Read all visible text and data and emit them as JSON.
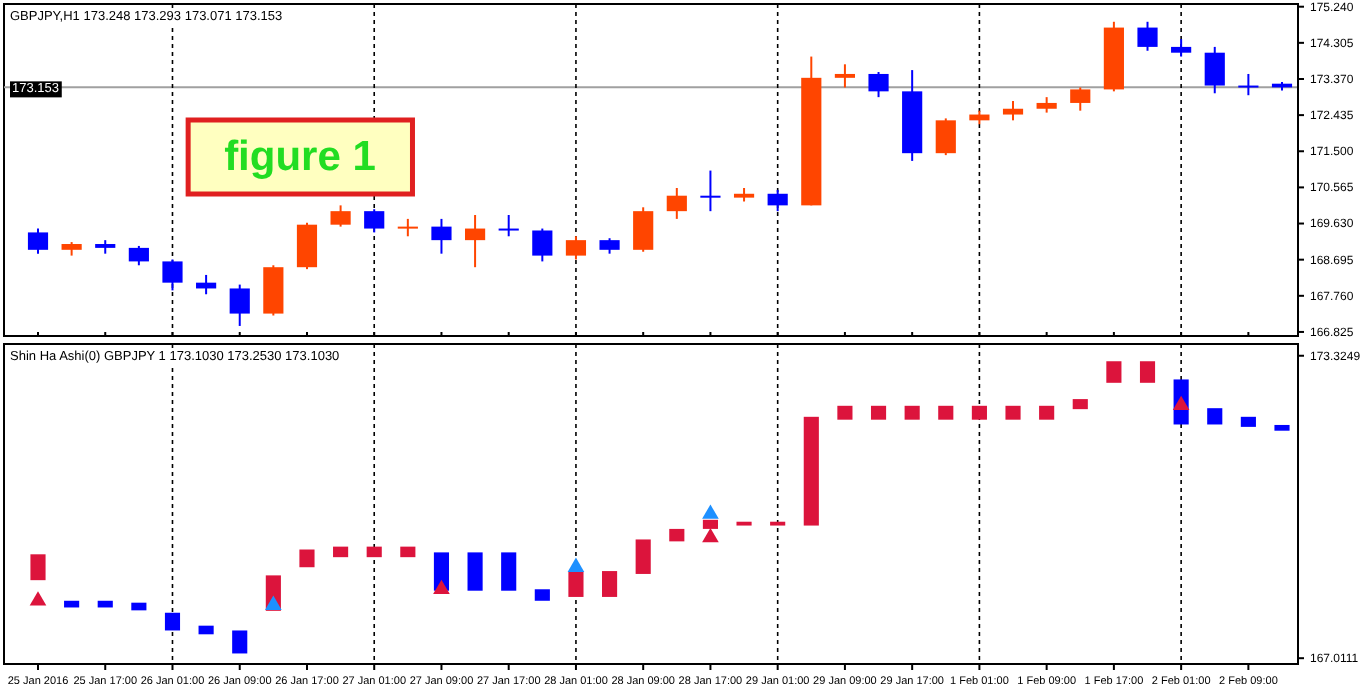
{
  "chart_data": [
    {
      "type": "candlestick",
      "title": "GBPJPY,H1 173.248 173.293 173.071 173.153",
      "categories": [
        "25 Jan 2016",
        null,
        "25 Jan 17:00",
        null,
        "26 Jan 01:00",
        null,
        "26 Jan 09:00",
        null,
        "26 Jan 17:00",
        null,
        "27 Jan 01:00",
        null,
        "27 Jan 09:00",
        null,
        "27 Jan 17:00",
        null,
        "28 Jan 01:00",
        null,
        "28 Jan 09:00",
        null,
        "28 Jan 17:00",
        null,
        "29 Jan 01:00",
        null,
        "29 Jan 09:00",
        null,
        "29 Jan 17:00",
        null,
        "1 Feb 01:00",
        null,
        "1 Feb 09:00",
        null,
        "1 Feb 17:00",
        null,
        "2 Feb 01:00",
        null,
        "2 Feb 09:00",
        null
      ],
      "ohlc": [
        [
          169.4,
          169.5,
          168.85,
          168.95
        ],
        [
          168.95,
          169.15,
          168.8,
          169.1
        ],
        [
          169.1,
          169.2,
          168.85,
          169.0
        ],
        [
          169.0,
          169.05,
          168.55,
          168.65
        ],
        [
          168.65,
          168.7,
          167.9,
          168.1
        ],
        [
          168.1,
          168.3,
          167.8,
          167.95
        ],
        [
          167.95,
          168.05,
          166.98,
          167.3
        ],
        [
          167.3,
          168.55,
          167.25,
          168.5
        ],
        [
          168.5,
          169.65,
          168.45,
          169.6
        ],
        [
          169.6,
          170.1,
          169.55,
          169.95
        ],
        [
          169.95,
          170.0,
          169.4,
          169.5
        ],
        [
          169.5,
          169.75,
          169.3,
          169.55
        ],
        [
          169.55,
          169.75,
          168.85,
          169.2
        ],
        [
          169.2,
          169.85,
          168.5,
          169.5
        ],
        [
          169.5,
          169.85,
          169.3,
          169.45
        ],
        [
          169.45,
          169.5,
          168.65,
          168.8
        ],
        [
          168.8,
          169.3,
          168.7,
          169.2
        ],
        [
          169.2,
          169.25,
          168.85,
          168.95
        ],
        [
          168.95,
          170.05,
          168.9,
          169.95
        ],
        [
          169.95,
          170.55,
          169.75,
          170.35
        ],
        [
          170.35,
          171.0,
          169.95,
          170.3
        ],
        [
          170.3,
          170.55,
          170.2,
          170.4
        ],
        [
          170.4,
          170.5,
          169.95,
          170.1
        ],
        [
          170.1,
          173.95,
          170.1,
          173.4
        ],
        [
          173.4,
          173.75,
          173.15,
          173.5
        ],
        [
          173.5,
          173.55,
          172.9,
          173.05
        ],
        [
          173.05,
          173.6,
          171.25,
          171.45
        ],
        [
          171.45,
          172.35,
          171.4,
          172.3
        ],
        [
          172.3,
          172.55,
          172.2,
          172.45
        ],
        [
          172.45,
          172.8,
          172.3,
          172.6
        ],
        [
          172.6,
          172.9,
          172.5,
          172.75
        ],
        [
          172.75,
          173.15,
          172.55,
          173.1
        ],
        [
          173.1,
          174.85,
          173.05,
          174.7
        ],
        [
          174.7,
          174.85,
          174.1,
          174.2
        ],
        [
          174.2,
          174.4,
          173.95,
          174.05
        ],
        [
          174.05,
          174.2,
          173.0,
          173.2
        ],
        [
          173.2,
          173.5,
          172.95,
          173.15
        ],
        [
          173.248,
          173.293,
          173.071,
          173.153
        ]
      ],
      "colors": [
        "#0000ff",
        "#ff4500",
        "#0000ff",
        "#0000ff",
        "#0000ff",
        "#0000ff",
        "#0000ff",
        "#ff4500",
        "#ff4500",
        "#ff4500",
        "#0000ff",
        "#ff4500",
        "#0000ff",
        "#ff4500",
        "#0000ff",
        "#0000ff",
        "#ff4500",
        "#0000ff",
        "#ff4500",
        "#ff4500",
        "#0000ff",
        "#ff4500",
        "#0000ff",
        "#ff4500",
        "#ff4500",
        "#0000ff",
        "#0000ff",
        "#ff4500",
        "#ff4500",
        "#ff4500",
        "#ff4500",
        "#ff4500",
        "#ff4500",
        "#0000ff",
        "#0000ff",
        "#0000ff",
        "#0000ff",
        "#0000ff"
      ],
      "ylim": [
        166.72,
        175.31
      ],
      "yticks": [
        166.825,
        {
          "value": 167.76,
          "label": "167.760"
        },
        168.695,
        {
          "value": 169.63,
          "label": "169.630"
        },
        170.565,
        {
          "value": 171.5,
          "label": "171.500"
        },
        172.435,
        {
          "value": 173.37,
          "label": "173.370"
        },
        174.305,
        {
          "value": 175.24,
          "label": "175.240"
        }
      ],
      "tick_labels": "y",
      "ref_lines": [
        {
          "axis": "y",
          "value": 173.153,
          "label": "173.153",
          "color": "#a0a0a0",
          "line_style": "solid"
        },
        {
          "axis": "x",
          "value": "26 Jan 01:00",
          "color": "#000000",
          "line_style": "dashed"
        },
        {
          "axis": "x",
          "value": "27 Jan 01:00",
          "color": "#000000",
          "line_style": "dashed"
        },
        {
          "axis": "x",
          "value": "28 Jan 01:00",
          "color": "#000000",
          "line_style": "dashed"
        },
        {
          "axis": "x",
          "value": "29 Jan 01:00",
          "color": "#000000",
          "line_style": "dashed"
        },
        {
          "axis": "x",
          "value": "1 Feb 01:00",
          "color": "#000000",
          "line_style": "dashed"
        },
        {
          "axis": "x",
          "value": "2 Feb 01:00",
          "color": "#000000",
          "line_style": "dashed"
        }
      ],
      "annotations": [
        "figure 1"
      ]
    },
    {
      "type": "bar",
      "title": "Shin Ha Ashi(0) GBPJPY 1 173.1030 173.2530 173.1030",
      "categories": [
        "25 Jan 2016",
        null,
        "25 Jan 17:00",
        null,
        "26 Jan 01:00",
        null,
        "26 Jan 09:00",
        null,
        "26 Jan 17:00",
        null,
        "27 Jan 01:00",
        null,
        "27 Jan 09:00",
        null,
        "27 Jan 17:00",
        null,
        "28 Jan 01:00",
        null,
        "28 Jan 09:00",
        null,
        "28 Jan 17:00",
        null,
        "29 Jan 01:00",
        null,
        "29 Jan 09:00",
        null,
        "29 Jan 17:00",
        null,
        "1 Feb 01:00",
        null,
        "1 Feb 09:00",
        null,
        "1 Feb 17:00",
        null,
        "2 Feb 01:00",
        null,
        "2 Feb 09:00",
        null
      ],
      "series": [
        {
          "type": "bar",
          "base": [
            168.64,
            168.07,
            168.07,
            168.01,
            167.59,
            167.51,
            167.11,
            168.0,
            168.91,
            169.12,
            169.12,
            169.12,
            168.42,
            168.42,
            168.42,
            168.21,
            168.29,
            168.29,
            168.77,
            169.45,
            169.71,
            169.78,
            169.78,
            169.78,
            171.99,
            171.99,
            171.99,
            171.99,
            171.99,
            171.99,
            171.99,
            172.21,
            172.76,
            172.76,
            171.89,
            171.89,
            171.84,
            171.76
          ],
          "values": [
            0.54,
            0.14,
            0.14,
            0.16,
            0.37,
            0.18,
            0.48,
            0.74,
            0.37,
            0.22,
            0.22,
            0.22,
            0.8,
            0.8,
            0.8,
            0.24,
            0.54,
            0.54,
            0.72,
            0.26,
            0.19,
            0.08,
            0.08,
            2.27,
            0.29,
            0.29,
            0.29,
            0.29,
            0.29,
            0.29,
            0.29,
            0.21,
            0.45,
            0.45,
            0.94,
            0.34,
            0.21,
            0.12
          ],
          "colors": [
            "#dc143c",
            "#0000ff",
            "#0000ff",
            "#0000ff",
            "#0000ff",
            "#0000ff",
            "#0000ff",
            "#dc143c",
            "#dc143c",
            "#dc143c",
            "#dc143c",
            "#dc143c",
            "#0000ff",
            "#0000ff",
            "#0000ff",
            "#0000ff",
            "#dc143c",
            "#dc143c",
            "#dc143c",
            "#dc143c",
            "#dc143c",
            "#dc143c",
            "#dc143c",
            "#dc143c",
            "#dc143c",
            "#dc143c",
            "#dc143c",
            "#dc143c",
            "#dc143c",
            "#dc143c",
            "#dc143c",
            "#dc143c",
            "#dc143c",
            "#dc143c",
            "#0000ff",
            "#0000ff",
            "#0000ff",
            "#0000ff"
          ]
        },
        {
          "type": "scatter",
          "color": "#dc143c",
          "marker": "triangle",
          "values": [
            168.21,
            null,
            null,
            null,
            null,
            null,
            null,
            null,
            null,
            null,
            null,
            null,
            168.45,
            null,
            null,
            null,
            null,
            null,
            null,
            null,
            169.53,
            null,
            null,
            null,
            null,
            null,
            null,
            null,
            null,
            null,
            null,
            null,
            null,
            null,
            172.29,
            null,
            null,
            null
          ]
        },
        {
          "type": "scatter",
          "color": "#1e90ff",
          "marker": "triangle",
          "values": [
            null,
            null,
            null,
            null,
            null,
            null,
            null,
            168.12,
            null,
            null,
            null,
            null,
            null,
            null,
            null,
            null,
            168.91,
            null,
            null,
            null,
            170.02,
            null,
            null,
            null,
            null,
            null,
            null,
            null,
            null,
            null,
            null,
            null,
            null,
            null,
            null,
            null,
            null,
            null
          ]
        }
      ],
      "ylim": [
        166.89,
        173.57
      ],
      "yticks": [
        167.0111,
        173.3249
      ],
      "ref_lines": [
        {
          "axis": "x",
          "value": "26 Jan 01:00",
          "color": "#000000",
          "line_style": "dashed"
        },
        {
          "axis": "x",
          "value": "27 Jan 01:00",
          "color": "#000000",
          "line_style": "dashed"
        },
        {
          "axis": "x",
          "value": "28 Jan 01:00",
          "color": "#000000",
          "line_style": "dashed"
        },
        {
          "axis": "x",
          "value": "29 Jan 01:00",
          "color": "#000000",
          "line_style": "dashed"
        },
        {
          "axis": "x",
          "value": "1 Feb 01:00",
          "color": "#000000",
          "line_style": "dashed"
        },
        {
          "axis": "x",
          "value": "2 Feb 01:00",
          "color": "#000000",
          "line_style": "dashed"
        }
      ]
    }
  ]
}
